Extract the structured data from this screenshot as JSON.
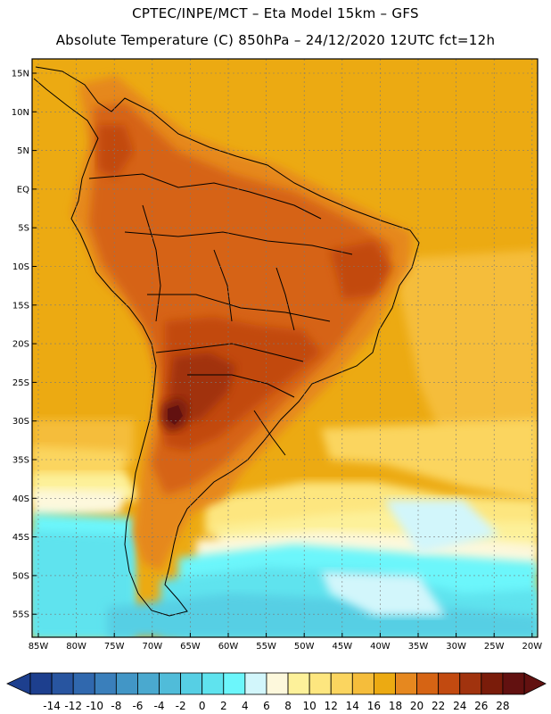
{
  "header": {
    "line1": "CPTEC/INPE/MCT –  Eta Model 15km – GFS",
    "line2": "Absolute Temperature (C) 850hPa – 24/12/2020 12UTC fct=12h"
  },
  "map": {
    "lat_labels": [
      "15N",
      "10N",
      "5N",
      "EQ",
      "5S",
      "10S",
      "15S",
      "20S",
      "25S",
      "30S",
      "35S",
      "40S",
      "45S",
      "50S",
      "55S"
    ],
    "lon_labels": [
      "85W",
      "80W",
      "75W",
      "70W",
      "65W",
      "60W",
      "55W",
      "50W",
      "45W",
      "40W",
      "35W",
      "30W",
      "25W",
      "20W"
    ],
    "variable": "Absolute Temperature (C)",
    "level": "850hPa"
  },
  "colorbar": {
    "labels": [
      "-14",
      "-12",
      "-10",
      "-8",
      "-6",
      "-4",
      "-2",
      "0",
      "2",
      "4",
      "6",
      "8",
      "10",
      "12",
      "14",
      "16",
      "18",
      "20",
      "22",
      "24",
      "26",
      "28"
    ],
    "colors": [
      "#1d3f8e",
      "#2855a0",
      "#3068ae",
      "#3a7fbb",
      "#4296c6",
      "#4aa9cf",
      "#50bcd9",
      "#56cfe4",
      "#5fe3ee",
      "#6cf6fb",
      "#d2f6fb",
      "#fdf8dc",
      "#fdf19a",
      "#fde67f",
      "#fbd55f",
      "#f5bd3b",
      "#ecaa12",
      "#e6881f",
      "#d66414",
      "#c24a10",
      "#a1330e",
      "#7a1c0a",
      "#621110"
    ],
    "min_color": "#1d3f8e",
    "max_color": "#621110"
  }
}
